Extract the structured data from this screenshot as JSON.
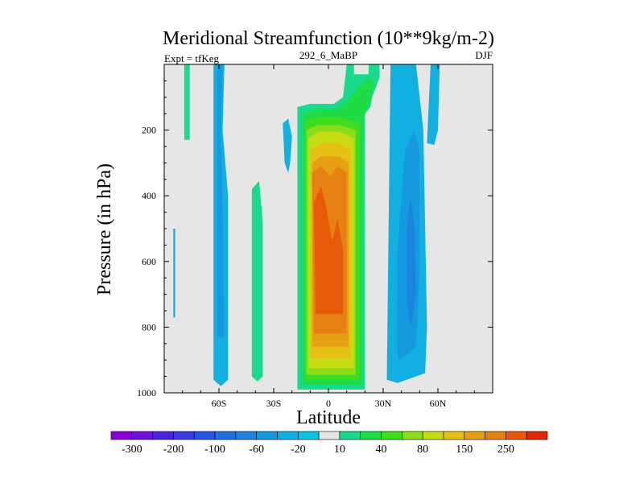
{
  "chart_data": {
    "type": "contour",
    "title": "Meridional Streamfunction (10**9kg/m-2)",
    "subtitle_left": "Expt = tfKeg",
    "subtitle_center": "292_6_MaBP",
    "subtitle_right": "DJF",
    "xlabel": "Latitude",
    "ylabel": "Pressure (in hPa)",
    "xlim": [
      -90,
      90
    ],
    "ylim": [
      0,
      1000
    ],
    "y_inverted": true,
    "x_ticks": [
      {
        "value": -60,
        "label": "60S"
      },
      {
        "value": -30,
        "label": "30S"
      },
      {
        "value": 0,
        "label": "0"
      },
      {
        "value": 30,
        "label": "30N"
      },
      {
        "value": 60,
        "label": "60N"
      }
    ],
    "y_ticks": [
      {
        "value": 200,
        "label": "200"
      },
      {
        "value": 400,
        "label": "400"
      },
      {
        "value": 600,
        "label": "600"
      },
      {
        "value": 800,
        "label": "800"
      },
      {
        "value": 1000,
        "label": "1000"
      }
    ],
    "background_color": "#e6e6e6",
    "levels": [
      -300,
      -250,
      -200,
      -150,
      -100,
      -80,
      -60,
      -40,
      -20,
      -10,
      10,
      20,
      40,
      60,
      80,
      100,
      150,
      200,
      250,
      300
    ],
    "colorbar_labels": [
      -300,
      -200,
      -100,
      -60,
      -20,
      10,
      40,
      80,
      150,
      250
    ],
    "colorbar_colors": [
      "#8a00d4",
      "#6a14dc",
      "#4b23dc",
      "#3a3ce0",
      "#2457e0",
      "#1e6fe0",
      "#1a84e0",
      "#159ae0",
      "#12b0e0",
      "#10c4e0",
      "#e6e6e6",
      "#19d98a",
      "#1edc46",
      "#40dc1e",
      "#8cdc1e",
      "#c8dc14",
      "#e6c014",
      "#e6a014",
      "#e68214",
      "#e65a0a",
      "#e02808"
    ],
    "regions": [
      {
        "level_index": 10,
        "color": "#19d98a",
        "polygon": [
          [
            -17,
            990
          ],
          [
            -17,
            130
          ],
          [
            -10,
            120
          ],
          [
            3,
            120
          ],
          [
            8,
            100
          ],
          [
            10,
            0
          ],
          [
            14,
            0
          ],
          [
            14,
            30
          ],
          [
            22,
            30
          ],
          [
            22,
            0
          ],
          [
            28,
            0
          ],
          [
            28,
            40
          ],
          [
            24,
            100
          ],
          [
            23,
            130
          ],
          [
            20,
            150
          ],
          [
            20,
            990
          ]
        ]
      },
      {
        "level_index": 11,
        "color": "#1edc46",
        "polygon": [
          [
            -14,
            975
          ],
          [
            -14,
            150
          ],
          [
            -8,
            138
          ],
          [
            5,
            136
          ],
          [
            12,
            100
          ],
          [
            18,
            60
          ],
          [
            22,
            40
          ],
          [
            25,
            60
          ],
          [
            22,
            120
          ],
          [
            19,
            170
          ],
          [
            18,
            975
          ]
        ]
      },
      {
        "level_index": 12,
        "color": "#40dc1e",
        "polygon": [
          [
            -13,
            960
          ],
          [
            -13,
            175
          ],
          [
            -6,
            160
          ],
          [
            6,
            160
          ],
          [
            17,
            180
          ],
          [
            17,
            960
          ]
        ]
      },
      {
        "level_index": 13,
        "color": "#8cdc1e",
        "polygon": [
          [
            -12,
            945
          ],
          [
            -12,
            200
          ],
          [
            -6,
            185
          ],
          [
            6,
            185
          ],
          [
            15,
            200
          ],
          [
            15,
            945
          ]
        ]
      },
      {
        "level_index": 14,
        "color": "#c8dc14",
        "polygon": [
          [
            -11,
            925
          ],
          [
            -11,
            225
          ],
          [
            -5,
            205
          ],
          [
            6,
            205
          ],
          [
            14,
            225
          ],
          [
            14,
            925
          ]
        ]
      },
      {
        "level_index": 15,
        "color": "#e6c014",
        "polygon": [
          [
            -10,
            895
          ],
          [
            -10,
            260
          ],
          [
            -4,
            240
          ],
          [
            6,
            240
          ],
          [
            12,
            260
          ],
          [
            12,
            895
          ]
        ]
      },
      {
        "level_index": 16,
        "color": "#e6a014",
        "polygon": [
          [
            -9,
            860
          ],
          [
            -9,
            300
          ],
          [
            -4,
            280
          ],
          [
            6,
            280
          ],
          [
            11,
            300
          ],
          [
            11,
            860
          ]
        ]
      },
      {
        "level_index": 17,
        "color": "#e68214",
        "polygon": [
          [
            -8,
            820
          ],
          [
            -9,
            330
          ],
          [
            -4,
            310
          ],
          [
            1,
            340
          ],
          [
            5,
            310
          ],
          [
            10,
            330
          ],
          [
            10,
            820
          ]
        ]
      },
      {
        "level_index": 18,
        "color": "#e65a0a",
        "polygon": [
          [
            -7,
            760
          ],
          [
            -8,
            420
          ],
          [
            -4,
            370
          ],
          [
            -1,
            440
          ],
          [
            2,
            540
          ],
          [
            5,
            470
          ],
          [
            8,
            560
          ],
          [
            8,
            760
          ]
        ]
      },
      {
        "level_index": 8,
        "color": "#12b0e0",
        "polygon": [
          [
            -63,
            960
          ],
          [
            -63,
            0
          ],
          [
            -57,
            0
          ],
          [
            -58,
            200
          ],
          [
            -55,
            400
          ],
          [
            -55,
            960
          ],
          [
            -59,
            980
          ]
        ]
      },
      {
        "level_index": 7,
        "color": "#159ae0",
        "polygon": [
          [
            -61,
            830
          ],
          [
            -61,
            0
          ],
          [
            -58,
            0
          ],
          [
            -59,
            200
          ],
          [
            -58,
            400
          ],
          [
            -57,
            830
          ]
        ]
      },
      {
        "level_index": 11,
        "color": "#19d98a",
        "polygon": [
          [
            -79,
            230
          ],
          [
            -79,
            0
          ],
          [
            -76,
            0
          ],
          [
            -76,
            230
          ]
        ]
      },
      {
        "level_index": 11,
        "color": "#19d98a",
        "polygon": [
          [
            -42,
            950
          ],
          [
            -42,
            380
          ],
          [
            -38,
            355
          ],
          [
            -36,
            480
          ],
          [
            -36,
            950
          ],
          [
            -39,
            965
          ]
        ]
      },
      {
        "level_index": 8,
        "color": "#12b0e0",
        "polygon": [
          [
            -24,
            300
          ],
          [
            -25,
            180
          ],
          [
            -22,
            165
          ],
          [
            -20,
            220
          ],
          [
            -21,
            300
          ],
          [
            -22,
            330
          ]
        ]
      },
      {
        "level_index": 8,
        "color": "#12b0e0",
        "polygon": [
          [
            -85,
            770
          ],
          [
            -85,
            500
          ],
          [
            -84,
            500
          ],
          [
            -84,
            770
          ]
        ]
      },
      {
        "level_index": 8,
        "color": "#12b0e0",
        "polygon": [
          [
            32,
            960
          ],
          [
            34,
            0
          ],
          [
            48,
            0
          ],
          [
            52,
            200
          ],
          [
            54,
            800
          ],
          [
            53,
            940
          ],
          [
            38,
            970
          ]
        ]
      },
      {
        "level_index": 7,
        "color": "#159ae0",
        "polygon": [
          [
            42,
            260
          ],
          [
            47,
            200
          ],
          [
            50,
            260
          ],
          [
            50,
            640
          ],
          [
            48,
            860
          ],
          [
            44,
            880
          ],
          [
            38,
            900
          ],
          [
            38,
            560
          ],
          [
            40,
            400
          ]
        ]
      },
      {
        "level_index": 6,
        "color": "#1a84e0",
        "polygon": [
          [
            45,
            400
          ],
          [
            47,
            480
          ],
          [
            48,
            700
          ],
          [
            45,
            800
          ],
          [
            43,
            720
          ],
          [
            43,
            500
          ]
        ]
      },
      {
        "level_index": 8,
        "color": "#12b0e0",
        "polygon": [
          [
            54,
            240
          ],
          [
            56,
            0
          ],
          [
            61,
            0
          ],
          [
            60,
            200
          ],
          [
            58,
            245
          ]
        ]
      }
    ]
  }
}
